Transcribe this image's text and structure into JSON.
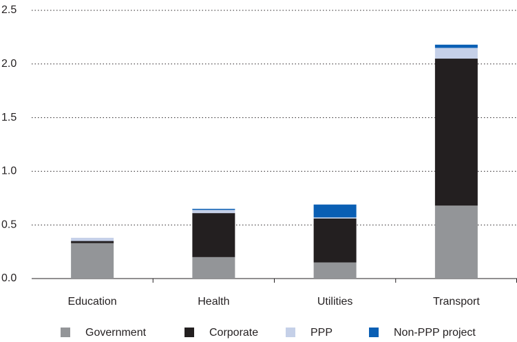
{
  "chart_data": {
    "type": "stacked_bar",
    "categories": [
      "Education",
      "Health",
      "Utilities",
      "Transport"
    ],
    "series": [
      {
        "name": "Government",
        "color": "#939598",
        "values": [
          0.33,
          0.2,
          0.15,
          0.68
        ]
      },
      {
        "name": "Corporate",
        "color": "#231f20",
        "values": [
          0.02,
          0.41,
          0.41,
          1.37
        ]
      },
      {
        "name": "PPP",
        "color": "#c5d0e8",
        "values": [
          0.03,
          0.03,
          0.01,
          0.1
        ]
      },
      {
        "name": "Non-PPP project",
        "color": "#0a5fb4",
        "values": [
          0.0,
          0.01,
          0.12,
          0.03
        ]
      }
    ],
    "ylim": [
      0,
      2.5
    ],
    "yticks": [
      {
        "value": 0,
        "label": "0.0"
      },
      {
        "value": 0.5,
        "label": "0.5"
      },
      {
        "value": 1,
        "label": "1.0"
      },
      {
        "value": 1.5,
        "label": "1.5"
      },
      {
        "value": 2,
        "label": "2.0"
      },
      {
        "value": 2.5,
        "label": "2.5"
      }
    ],
    "grid": true,
    "legend": "bottom"
  }
}
